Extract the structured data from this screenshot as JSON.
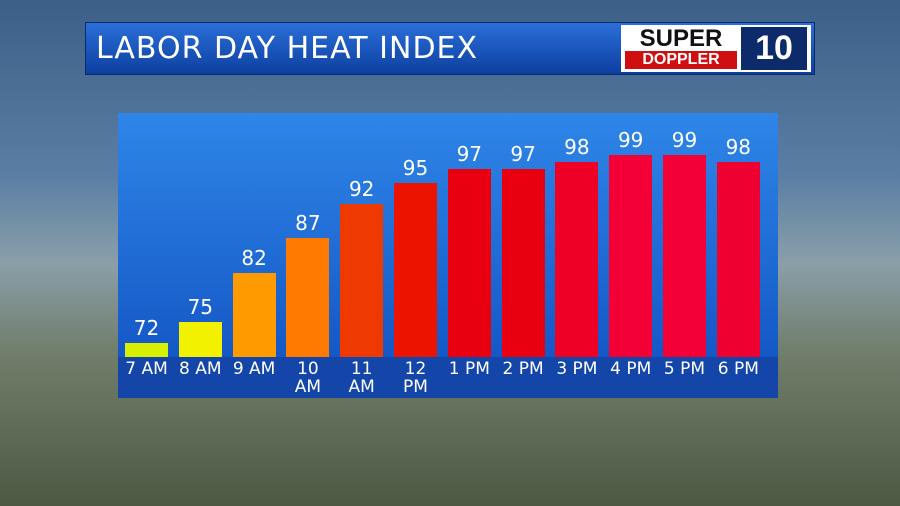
{
  "chart_data": {
    "type": "bar",
    "title": "LABOR DAY HEAT INDEX",
    "logo": {
      "line1": "SUPER",
      "line2": "DOPPLER",
      "number": "10"
    },
    "categories": [
      "7 AM",
      "8 AM",
      "9 AM",
      "10 AM",
      "11 AM",
      "12 PM",
      "1 PM",
      "2 PM",
      "3 PM",
      "4 PM",
      "5 PM",
      "6 PM"
    ],
    "values": [
      72,
      75,
      82,
      87,
      92,
      95,
      97,
      97,
      98,
      99,
      99,
      98
    ],
    "colors": [
      "#d8f000",
      "#f2f200",
      "#ff9a00",
      "#ff7a00",
      "#ee3a00",
      "#ec1400",
      "#e80010",
      "#e80010",
      "#ee0026",
      "#f20036",
      "#f20036",
      "#ee0030"
    ],
    "ylim": [
      70,
      105
    ]
  }
}
